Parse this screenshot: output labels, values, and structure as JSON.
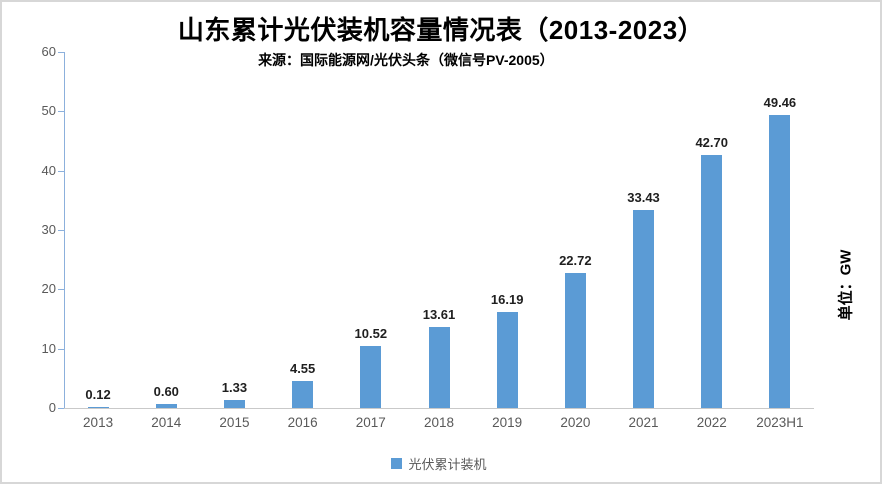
{
  "chart_data": {
    "type": "bar",
    "title": "山东累计光伏装机容量情况表（2013-2023）",
    "subtitle": "来源：国际能源网/光伏头条（微信号PV-2005）",
    "unit_label": "单位：GW",
    "legend": [
      "光伏累计装机"
    ],
    "legend_position": "bottom",
    "categories": [
      "2013",
      "2014",
      "2015",
      "2016",
      "2017",
      "2018",
      "2019",
      "2020",
      "2021",
      "2022",
      "2023H1"
    ],
    "values": [
      0.12,
      0.6,
      1.33,
      4.55,
      10.52,
      13.61,
      16.19,
      22.72,
      33.43,
      42.7,
      49.46
    ],
    "value_labels": [
      "0.12",
      "0.60",
      "1.33",
      "4.55",
      "10.52",
      "13.61",
      "16.19",
      "22.72",
      "33.43",
      "42.70",
      "49.46"
    ],
    "ylabel": "",
    "xlabel": "",
    "ylim": [
      0,
      60
    ],
    "yticks": [
      0,
      10,
      20,
      30,
      40,
      50,
      60
    ],
    "grid": false,
    "bar_color": "#5b9bd5",
    "y_axis_color": "#8cb0dc",
    "x_axis_color": "#c9c9c9"
  }
}
